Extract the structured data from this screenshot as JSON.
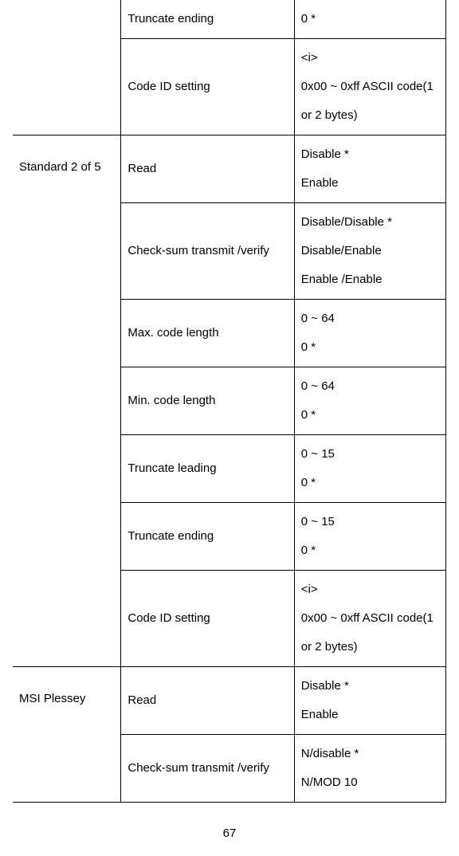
{
  "table": {
    "row0": {
      "c2": "Truncate ending",
      "c3": "0 *"
    },
    "row1": {
      "c2": "Code ID setting",
      "c3": "<i>\n0x00 ~ 0xff ASCII code(1 or 2 bytes)"
    },
    "group1": {
      "label": "Standard 2 of 5"
    },
    "row2": {
      "c2": "Read",
      "c3": "Disable *\nEnable"
    },
    "row3": {
      "c2": "Check-sum transmit /verify",
      "c3": "Disable/Disable *\nDisable/Enable\nEnable /Enable"
    },
    "row4": {
      "c2": "Max. code length",
      "c3": "0 ~ 64\n0 *"
    },
    "row5": {
      "c2": "Min. code length",
      "c3": "0 ~ 64\n0 *"
    },
    "row6": {
      "c2": "Truncate leading",
      "c3": "0 ~ 15\n0 *"
    },
    "row7": {
      "c2": "Truncate ending",
      "c3": "0 ~ 15\n0 *"
    },
    "row8": {
      "c2": "Code ID setting",
      "c3": "<i>\n0x00 ~ 0xff ASCII code(1 or 2 bytes)"
    },
    "group2": {
      "label": "MSI Plessey"
    },
    "row9": {
      "c2": "Read",
      "c3": "Disable *\nEnable"
    },
    "row10": {
      "c2": "Check-sum transmit /verify",
      "c3": "N/disable *\nN/MOD 10"
    }
  },
  "pageNumber": "67"
}
